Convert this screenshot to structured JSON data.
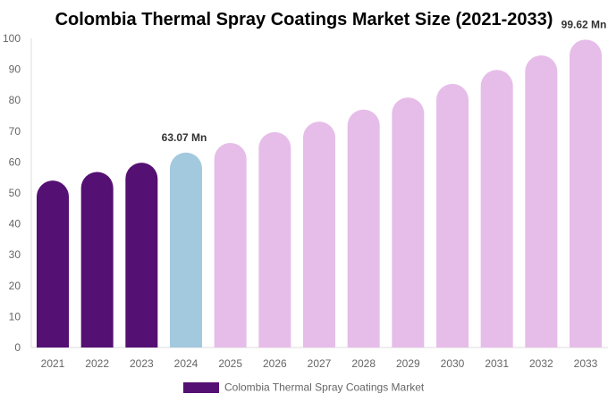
{
  "chart_data": {
    "type": "bar",
    "title": "Colombia Thermal Spray Coatings Market Size (2021-2033)",
    "categories": [
      "2021",
      "2022",
      "2023",
      "2024",
      "2025",
      "2026",
      "2027",
      "2028",
      "2029",
      "2030",
      "2031",
      "2032",
      "2033"
    ],
    "series": [
      {
        "name": "Colombia Thermal Spray Coatings Market",
        "values": [
          54.0,
          56.8,
          59.8,
          63.07,
          66.2,
          69.7,
          73.1,
          77.0,
          80.9,
          85.3,
          89.8,
          94.5,
          99.62
        ]
      }
    ],
    "ylim": [
      0,
      100
    ],
    "yticks": [
      0,
      10,
      20,
      30,
      40,
      50,
      60,
      70,
      80,
      90,
      100
    ],
    "data_labels": [
      {
        "index": 3,
        "text": "63.07 Mn"
      },
      {
        "index": 12,
        "text": "99.62 Mn"
      }
    ],
    "colors": {
      "historical": "#541072",
      "current": "#a3c9de",
      "forecast": "#e6bde9"
    },
    "bar_color_groups": [
      "historical",
      "historical",
      "historical",
      "current",
      "forecast",
      "forecast",
      "forecast",
      "forecast",
      "forecast",
      "forecast",
      "forecast",
      "forecast",
      "forecast"
    ],
    "legend": {
      "placement": "bottom",
      "color": "#541072"
    },
    "grid": false
  }
}
